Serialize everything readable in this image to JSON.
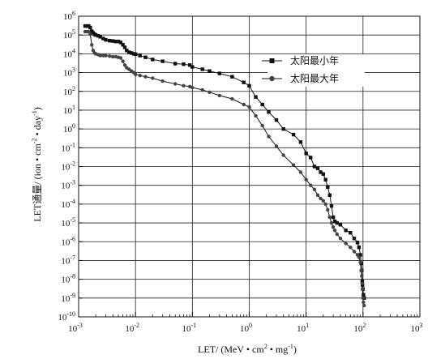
{
  "chart_data": {
    "type": "line",
    "xscale": "log",
    "yscale": "log",
    "xlim": [
      0.001,
      1000
    ],
    "ylim": [
      1e-10,
      1000000.0
    ],
    "grid": true,
    "legend_position": "upper-right",
    "xlabel_parts": [
      "LET/ (MeV • cm",
      "2",
      " • mg",
      "-1",
      ")"
    ],
    "ylabel_parts": [
      "LET通量/ (ion • cm",
      "-2",
      " • day",
      "-1",
      ")"
    ],
    "x_ticks": [
      {
        "value": 0.001,
        "base": "10",
        "exp": "-3"
      },
      {
        "value": 0.01,
        "base": "10",
        "exp": "-2"
      },
      {
        "value": 0.1,
        "base": "10",
        "exp": "-1"
      },
      {
        "value": 1,
        "base": "10",
        "exp": "0"
      },
      {
        "value": 10,
        "base": "10",
        "exp": "1"
      },
      {
        "value": 100,
        "base": "10",
        "exp": "2"
      },
      {
        "value": 1000,
        "base": "10",
        "exp": "3"
      }
    ],
    "y_ticks": [
      {
        "value": 1e-10,
        "base": "10",
        "exp": "-10"
      },
      {
        "value": 1e-09,
        "base": "10",
        "exp": "-9"
      },
      {
        "value": 1e-08,
        "base": "10",
        "exp": "-8"
      },
      {
        "value": 1e-07,
        "base": "10",
        "exp": "-7"
      },
      {
        "value": 1e-06,
        "base": "10",
        "exp": "-6"
      },
      {
        "value": 1e-05,
        "base": "10",
        "exp": "-5"
      },
      {
        "value": 0.0001,
        "base": "10",
        "exp": "-4"
      },
      {
        "value": 0.001,
        "base": "10",
        "exp": "-3"
      },
      {
        "value": 0.01,
        "base": "10",
        "exp": "-2"
      },
      {
        "value": 0.1,
        "base": "10",
        "exp": "-1"
      },
      {
        "value": 1,
        "base": "10",
        "exp": "0"
      },
      {
        "value": 10,
        "base": "10",
        "exp": "1"
      },
      {
        "value": 100,
        "base": "10",
        "exp": "2"
      },
      {
        "value": 1000,
        "base": "10",
        "exp": "3"
      },
      {
        "value": 10000,
        "base": "10",
        "exp": "4"
      },
      {
        "value": 100000,
        "base": "10",
        "exp": "5"
      },
      {
        "value": 1000000,
        "base": "10",
        "exp": "6"
      }
    ],
    "series": [
      {
        "name": "太阳最小年",
        "marker": "square",
        "color": "#111111",
        "x": [
          0.0013,
          0.0014,
          0.0015,
          0.0016,
          0.0017,
          0.0018,
          0.0019,
          0.002,
          0.0022,
          0.0024,
          0.0027,
          0.003,
          0.0035,
          0.004,
          0.0045,
          0.005,
          0.0055,
          0.006,
          0.0065,
          0.007,
          0.0077,
          0.0085,
          0.0093,
          0.01,
          0.012,
          0.015,
          0.02,
          0.03,
          0.05,
          0.07,
          0.09,
          0.1,
          0.15,
          0.2,
          0.3,
          0.5,
          0.8,
          1.0,
          1.3,
          1.7,
          2.2,
          3,
          4,
          6,
          8,
          10,
          12,
          14,
          16,
          18,
          20,
          22,
          24,
          26,
          28,
          30,
          32,
          35,
          40,
          50,
          60,
          70,
          80,
          85,
          90,
          93,
          95,
          97,
          98,
          100,
          102,
          105
        ],
        "y": [
          300000,
          300000,
          300000,
          250000,
          160000,
          130000,
          110000,
          100000,
          90000,
          80000,
          65000,
          55000,
          50000,
          48000,
          45000,
          45000,
          40000,
          30000,
          22000,
          15000,
          12000,
          11000,
          10000,
          9500,
          8000,
          6500,
          5000,
          4000,
          3000,
          2800,
          2500,
          2000,
          1500,
          1200,
          900,
          600,
          300,
          200,
          50,
          20,
          8,
          3,
          1,
          0.5,
          0.2,
          0.05,
          0.03,
          0.01,
          0.008,
          0.005,
          0.004,
          0.002,
          0.0008,
          0.0003,
          8e-05,
          2e-05,
          1.2e-05,
          1e-05,
          8e-06,
          4e-06,
          3e-06,
          1.5e-06,
          9e-07,
          5e-07,
          2e-07,
          7e-08,
          3e-08,
          8e-09,
          5e-09,
          3e-09,
          1.5e-09,
          1e-09
        ]
      },
      {
        "name": "太阳最大年",
        "marker": "circle",
        "color": "#111111",
        "x": [
          0.0013,
          0.0014,
          0.0015,
          0.0016,
          0.0017,
          0.0018,
          0.0019,
          0.002,
          0.0022,
          0.0024,
          0.0027,
          0.003,
          0.0035,
          0.004,
          0.0045,
          0.005,
          0.0055,
          0.006,
          0.0065,
          0.007,
          0.0077,
          0.0085,
          0.0093,
          0.01,
          0.012,
          0.015,
          0.02,
          0.03,
          0.05,
          0.07,
          0.09,
          0.1,
          0.15,
          0.2,
          0.3,
          0.5,
          0.8,
          1.0,
          1.3,
          1.7,
          2.2,
          3,
          4,
          6,
          8,
          10,
          12,
          14,
          16,
          18,
          20,
          22,
          24,
          26,
          28,
          30,
          32,
          35,
          40,
          50,
          60,
          70,
          80,
          85,
          90,
          93,
          95,
          97,
          98,
          100,
          102,
          105
        ],
        "y": [
          150000,
          150000,
          150000,
          110000,
          30000,
          15000,
          11000,
          10000,
          9000,
          8000,
          8000,
          8000,
          7500,
          7000,
          7000,
          6500,
          6000,
          4000,
          2500,
          1800,
          1500,
          1200,
          1000,
          800,
          700,
          600,
          500,
          350,
          250,
          200,
          180,
          160,
          120,
          90,
          60,
          40,
          20,
          15,
          5,
          1.5,
          0.4,
          0.12,
          0.04,
          0.012,
          0.005,
          0.002,
          0.001,
          0.0006,
          0.0003,
          0.0002,
          0.00015,
          0.0001,
          5e-05,
          2e-05,
          1e-05,
          6e-06,
          4e-06,
          2.5e-06,
          1.5e-06,
          8e-07,
          5e-07,
          3e-07,
          2e-07,
          1.5e-07,
          8e-08,
          3e-08,
          1.5e-08,
          6e-09,
          3e-09,
          1e-09,
          6e-10,
          4e-10
        ]
      }
    ]
  }
}
